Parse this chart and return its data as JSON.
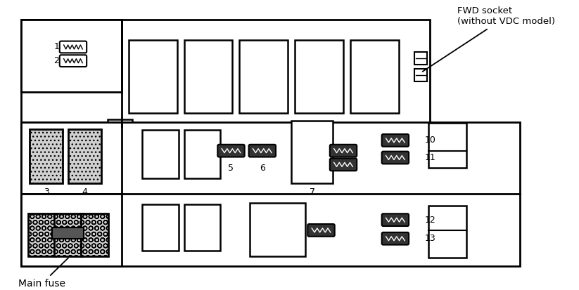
{
  "bg_color": "#ffffff",
  "fwd_label": "FWD socket\n(without VDC model)",
  "main_fuse_label": "Main fuse"
}
